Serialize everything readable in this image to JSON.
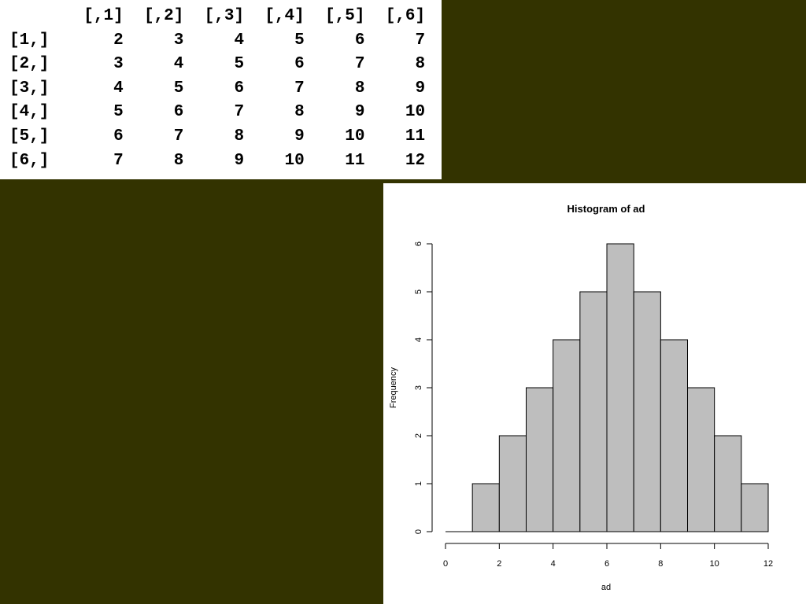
{
  "matrix": {
    "col_headers": [
      "[,1]",
      "[,2]",
      "[,3]",
      "[,4]",
      "[,5]",
      "[,6]"
    ],
    "row_headers": [
      "[1,]",
      "[2,]",
      "[3,]",
      "[4,]",
      "[5,]",
      "[6,]"
    ],
    "rows": [
      [
        "2",
        "3",
        "4",
        "5",
        "6",
        "7"
      ],
      [
        "3",
        "4",
        "5",
        "6",
        "7",
        "8"
      ],
      [
        "4",
        "5",
        "6",
        "7",
        "8",
        "9"
      ],
      [
        "5",
        "6",
        "7",
        "8",
        "9",
        "10"
      ],
      [
        "6",
        "7",
        "8",
        "9",
        "10",
        "11"
      ],
      [
        "7",
        "8",
        "9",
        "10",
        "11",
        "12"
      ]
    ]
  },
  "colors": {
    "background": "#333300",
    "panel": "#ffffff",
    "bar_fill": "#bebebe",
    "bar_stroke": "#000000"
  },
  "chart_data": {
    "type": "bar",
    "title": "Histogram of ad",
    "xlabel": "ad",
    "ylabel": "Frequency",
    "bins": [
      [
        0,
        1
      ],
      [
        1,
        2
      ],
      [
        2,
        3
      ],
      [
        3,
        4
      ],
      [
        4,
        5
      ],
      [
        5,
        6
      ],
      [
        6,
        7
      ],
      [
        7,
        8
      ],
      [
        8,
        9
      ],
      [
        9,
        10
      ],
      [
        10,
        11
      ],
      [
        11,
        12
      ]
    ],
    "values": [
      0,
      1,
      2,
      3,
      4,
      5,
      6,
      5,
      4,
      3,
      2,
      1
    ],
    "xlim": [
      0,
      12
    ],
    "ylim": [
      0,
      6
    ],
    "x_ticks": [
      "0",
      "2",
      "4",
      "6",
      "8",
      "10",
      "12"
    ],
    "y_ticks": [
      "0",
      "1",
      "2",
      "3",
      "4",
      "5",
      "6"
    ],
    "grid": false
  }
}
